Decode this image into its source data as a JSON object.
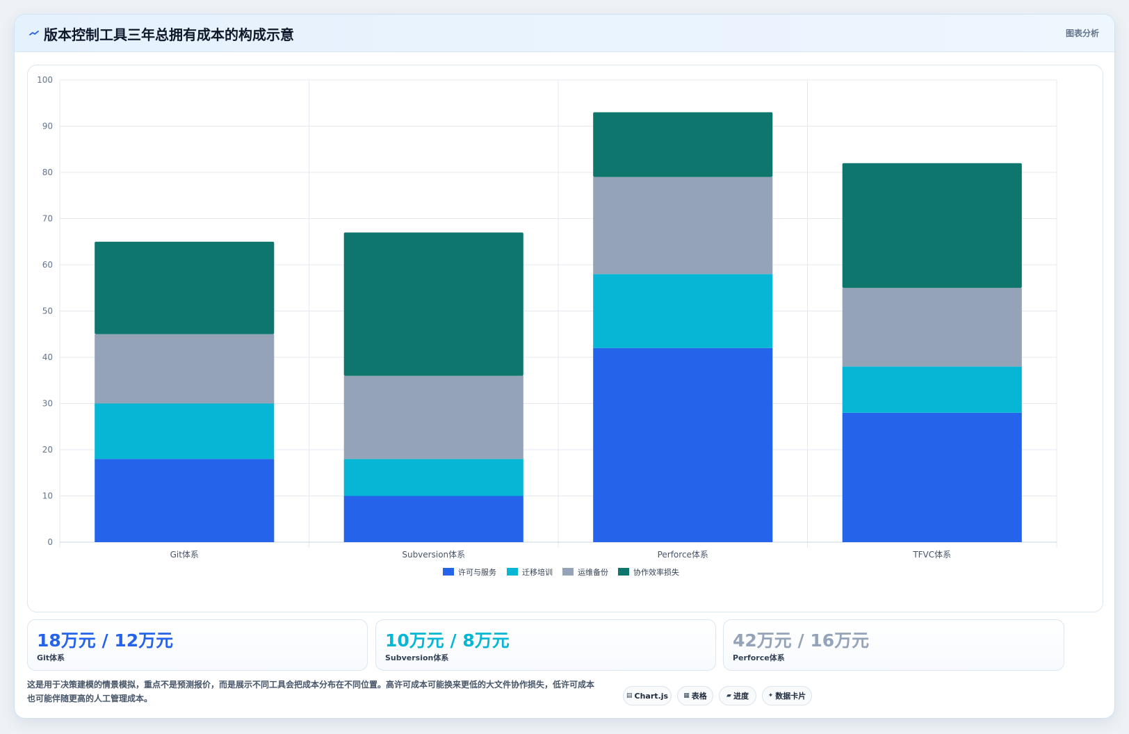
{
  "header": {
    "title": "版本控制工具三年总拥有成本的构成示意",
    "tag": "图表分析",
    "icon": "wave-icon"
  },
  "chart_data": {
    "type": "bar",
    "stacked": true,
    "categories": [
      "Git体系",
      "Subversion体系",
      "Perforce体系",
      "TFVC体系"
    ],
    "series": [
      {
        "name": "许可与服务",
        "color": "#2563eb",
        "values": [
          18,
          10,
          42,
          28
        ]
      },
      {
        "name": "迁移培训",
        "color": "#06b6d4",
        "values": [
          12,
          8,
          16,
          10
        ]
      },
      {
        "name": "运维备份",
        "color": "#94a3b8",
        "values": [
          15,
          18,
          21,
          17
        ]
      },
      {
        "name": "协作效率损失",
        "color": "#0f766e",
        "values": [
          20,
          31,
          14,
          27
        ]
      }
    ],
    "ylim": [
      0,
      100
    ],
    "yticks": [
      0,
      10,
      20,
      30,
      40,
      50,
      60,
      70,
      80,
      90,
      100
    ],
    "legend": "bottom",
    "grid": true
  },
  "stats": [
    {
      "value": "18万元 / 12万元",
      "label": "Git体系",
      "color": "#2563eb"
    },
    {
      "value": "10万元 / 8万元",
      "label": "Subversion体系",
      "color": "#06b6d4"
    },
    {
      "value": "42万元 / 16万元",
      "label": "Perforce体系",
      "color": "#94a3b8"
    }
  ],
  "note": "这是用于决策建模的情景模拟，重点不是预测报价，而是展示不同工具会把成本分布在不同位置。高许可成本可能换来更低的大文件协作损失，低许可成本也可能伴随更高的人工管理成本。",
  "tools": [
    {
      "icon": "▤",
      "label": "Chart.js"
    },
    {
      "icon": "▦",
      "label": "表格"
    },
    {
      "icon": "▰",
      "label": "进度"
    },
    {
      "icon": "✦",
      "label": "数据卡片"
    }
  ]
}
